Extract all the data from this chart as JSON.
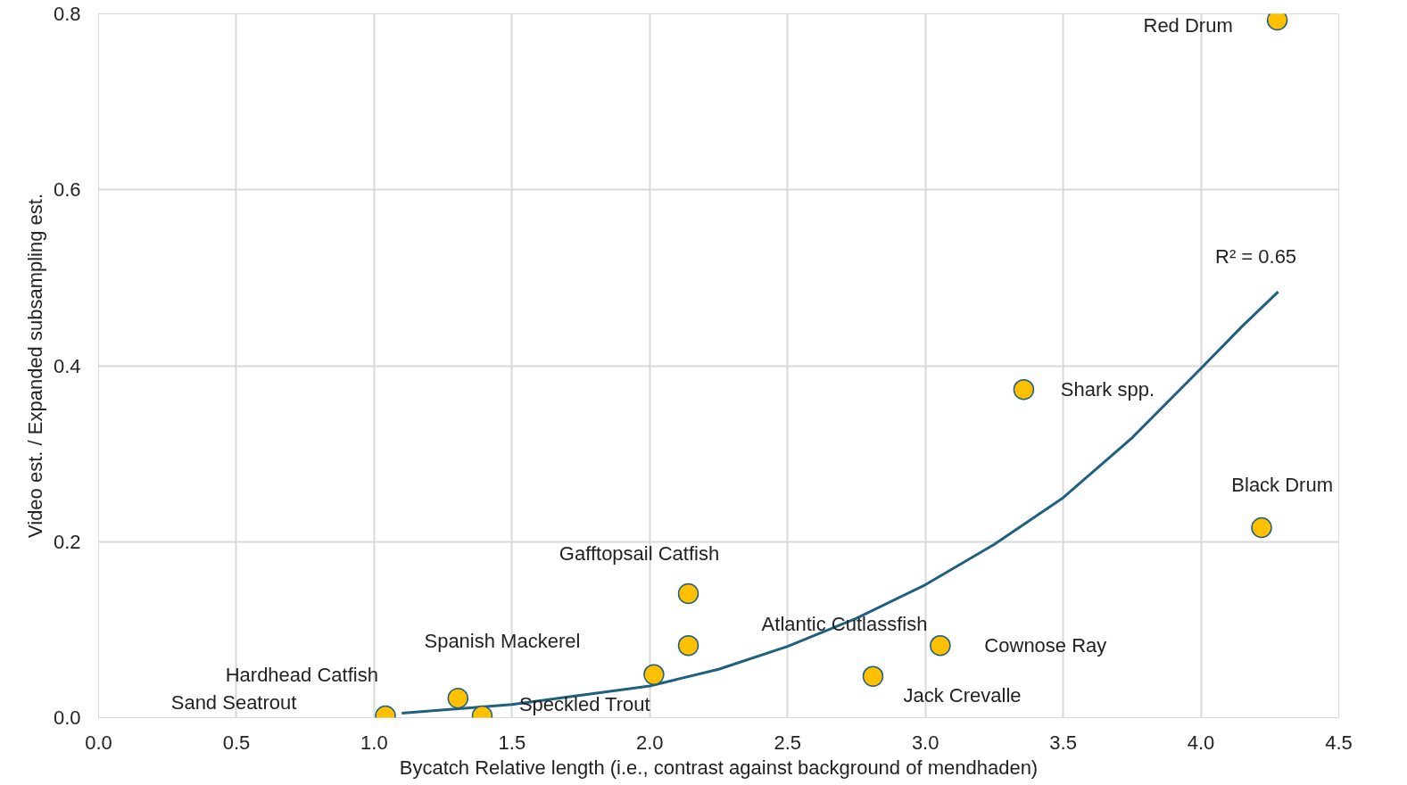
{
  "chart_data": {
    "type": "scatter",
    "xlabel": "Bycatch Relative length (i.e., contrast against background of mendhaden)",
    "ylabel": "Video est. / Expanded subsampling est.",
    "xlim": [
      0,
      4.5
    ],
    "ylim": [
      0,
      0.8
    ],
    "xticks": [
      {
        "value": 0,
        "label": "0.0"
      },
      {
        "value": 0.5,
        "label": "0.5"
      },
      {
        "value": 1,
        "label": "1.0"
      },
      {
        "value": 1.5,
        "label": "1.5"
      },
      {
        "value": 2,
        "label": "2.0"
      },
      {
        "value": 2.5,
        "label": "2.5"
      },
      {
        "value": 3,
        "label": "3.0"
      },
      {
        "value": 3.5,
        "label": "3.5"
      },
      {
        "value": 4,
        "label": "4.0"
      },
      {
        "value": 4.5,
        "label": "4.5"
      }
    ],
    "yticks": [
      {
        "value": 0,
        "label": "0.0"
      },
      {
        "value": 0.2,
        "label": "0.2"
      },
      {
        "value": 0.4,
        "label": "0.4"
      },
      {
        "value": 0.6,
        "label": "0.6"
      },
      {
        "value": 0.8,
        "label": "0.8"
      }
    ],
    "grid": true,
    "series": [
      {
        "type": "line",
        "marker": "none",
        "color": "#1f5f7f",
        "x": [
          1.1,
          1.5,
          2.0,
          2.25,
          2.5,
          2.75,
          3.0,
          3.25,
          3.5,
          3.75,
          4.0,
          4.15,
          4.28
        ],
        "values": [
          0.005,
          0.015,
          0.036,
          0.055,
          0.081,
          0.113,
          0.151,
          0.197,
          0.25,
          0.318,
          0.397,
          0.445,
          0.484
        ]
      },
      {
        "marker": "circle",
        "color": "#ffc000",
        "x": [
          4.277,
          3.357,
          4.22,
          2.14,
          2.14,
          3.054,
          2.81,
          2.015,
          1.304,
          1.392,
          1.041
        ],
        "values": [
          0.793,
          0.373,
          0.216,
          0.141,
          0.082,
          0.082,
          0.047,
          0.049,
          0.022,
          0.002,
          0.002
        ]
      }
    ],
    "annotations": [
      "Red Drum",
      "Shark spp.",
      "Black Drum",
      "Gafftopsail Catfish",
      "Atlantic Cutlassfish",
      "Cownose Ray",
      "Jack Crevalle",
      "Spanish Mackerel",
      "Hardhead Catfish",
      "Speckled Trout",
      "Sand Seatrout",
      "R² = 0.65"
    ]
  }
}
